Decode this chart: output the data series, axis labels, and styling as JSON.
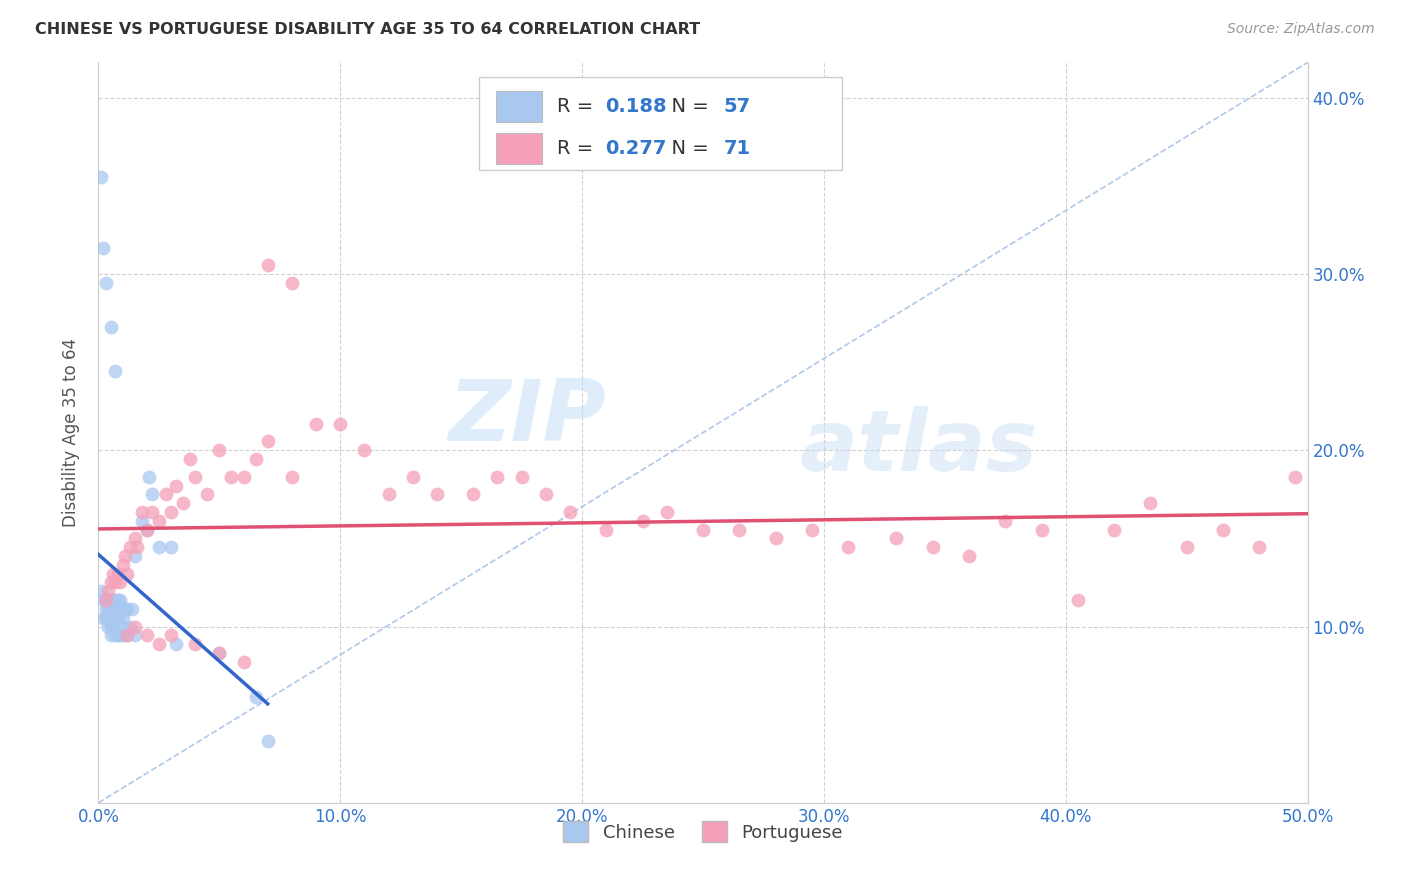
{
  "title": "CHINESE VS PORTUGUESE DISABILITY AGE 35 TO 64 CORRELATION CHART",
  "source": "Source: ZipAtlas.com",
  "ylabel": "Disability Age 35 to 64",
  "xlim": [
    0.0,
    0.5
  ],
  "ylim": [
    0.0,
    0.42
  ],
  "xticks": [
    0.0,
    0.1,
    0.2,
    0.3,
    0.4,
    0.5
  ],
  "xticklabels": [
    "0.0%",
    "10.0%",
    "20.0%",
    "30.0%",
    "40.0%",
    "50.0%"
  ],
  "yticks": [
    0.0,
    0.1,
    0.2,
    0.3,
    0.4
  ],
  "yticklabels": [
    "",
    "10.0%",
    "20.0%",
    "30.0%",
    "40.0%"
  ],
  "chinese_R": 0.188,
  "chinese_N": 57,
  "portuguese_R": 0.277,
  "portuguese_N": 71,
  "chinese_color": "#a8c8f0",
  "portuguese_color": "#f4a0b8",
  "chinese_line_color": "#3366cc",
  "portuguese_line_color": "#e05070",
  "diagonal_color": "#b0c8e8",
  "watermark_zip": "ZIP",
  "watermark_atlas": "atlas",
  "chinese_x": [
    0.001,
    0.002,
    0.002,
    0.003,
    0.003,
    0.003,
    0.004,
    0.004,
    0.004,
    0.004,
    0.005,
    0.005,
    0.005,
    0.005,
    0.005,
    0.006,
    0.006,
    0.006,
    0.006,
    0.007,
    0.007,
    0.007,
    0.007,
    0.007,
    0.008,
    0.008,
    0.008,
    0.008,
    0.009,
    0.009,
    0.009,
    0.01,
    0.01,
    0.01,
    0.011,
    0.011,
    0.012,
    0.012,
    0.013,
    0.014,
    0.015,
    0.015,
    0.018,
    0.02,
    0.021,
    0.022,
    0.025,
    0.03,
    0.032,
    0.05,
    0.065,
    0.07,
    0.001,
    0.002,
    0.003,
    0.005,
    0.007
  ],
  "chinese_y": [
    0.12,
    0.115,
    0.105,
    0.115,
    0.11,
    0.105,
    0.115,
    0.11,
    0.105,
    0.1,
    0.115,
    0.11,
    0.105,
    0.1,
    0.095,
    0.115,
    0.11,
    0.105,
    0.1,
    0.115,
    0.11,
    0.105,
    0.1,
    0.095,
    0.115,
    0.11,
    0.105,
    0.095,
    0.115,
    0.11,
    0.095,
    0.11,
    0.105,
    0.095,
    0.11,
    0.1,
    0.11,
    0.095,
    0.1,
    0.11,
    0.095,
    0.14,
    0.16,
    0.155,
    0.185,
    0.175,
    0.145,
    0.145,
    0.09,
    0.085,
    0.06,
    0.035,
    0.355,
    0.315,
    0.295,
    0.27,
    0.245
  ],
  "portuguese_x": [
    0.003,
    0.004,
    0.005,
    0.006,
    0.007,
    0.008,
    0.009,
    0.01,
    0.011,
    0.012,
    0.013,
    0.015,
    0.016,
    0.018,
    0.02,
    0.022,
    0.025,
    0.028,
    0.03,
    0.032,
    0.035,
    0.038,
    0.04,
    0.045,
    0.05,
    0.055,
    0.06,
    0.065,
    0.07,
    0.08,
    0.09,
    0.1,
    0.11,
    0.12,
    0.13,
    0.14,
    0.155,
    0.165,
    0.175,
    0.185,
    0.195,
    0.21,
    0.225,
    0.235,
    0.25,
    0.265,
    0.28,
    0.295,
    0.31,
    0.33,
    0.345,
    0.36,
    0.375,
    0.39,
    0.405,
    0.42,
    0.435,
    0.45,
    0.465,
    0.48,
    0.495,
    0.012,
    0.015,
    0.02,
    0.025,
    0.03,
    0.04,
    0.05,
    0.06,
    0.07,
    0.08
  ],
  "portuguese_y": [
    0.115,
    0.12,
    0.125,
    0.13,
    0.125,
    0.13,
    0.125,
    0.135,
    0.14,
    0.13,
    0.145,
    0.15,
    0.145,
    0.165,
    0.155,
    0.165,
    0.16,
    0.175,
    0.165,
    0.18,
    0.17,
    0.195,
    0.185,
    0.175,
    0.2,
    0.185,
    0.185,
    0.195,
    0.205,
    0.185,
    0.215,
    0.215,
    0.2,
    0.175,
    0.185,
    0.175,
    0.175,
    0.185,
    0.185,
    0.175,
    0.165,
    0.155,
    0.16,
    0.165,
    0.155,
    0.155,
    0.15,
    0.155,
    0.145,
    0.15,
    0.145,
    0.14,
    0.16,
    0.155,
    0.115,
    0.155,
    0.17,
    0.145,
    0.155,
    0.145,
    0.185,
    0.095,
    0.1,
    0.095,
    0.09,
    0.095,
    0.09,
    0.085,
    0.08,
    0.305,
    0.295
  ]
}
